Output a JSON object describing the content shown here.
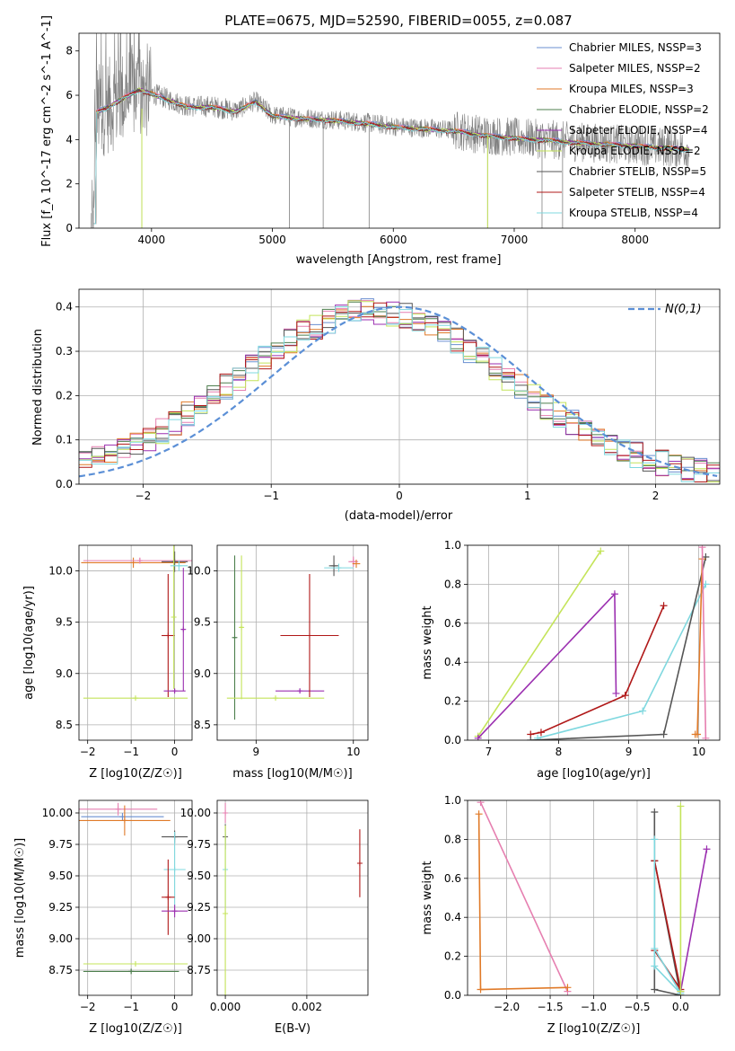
{
  "figure_title": "PLATE=0675, MJD=52590, FIBERID=0055, z=0.087",
  "colors": {
    "Chabrier MILES": "#6a8fd0",
    "Salpeter MILES": "#e67fb0",
    "Kroupa MILES": "#e07a28",
    "Chabrier ELODIE": "#4e7f4e",
    "Salpeter ELODIE": "#9b2fb0",
    "Kroupa ELODIE": "#c4e45a",
    "Chabrier STELIB": "#555555",
    "Salpeter STELIB": "#b01818",
    "Kroupa STELIB": "#7fd8df",
    "data_gray": "#808080",
    "normal_curve": "#5b8fd6"
  },
  "chart_data": [
    {
      "id": "spectrum",
      "type": "line",
      "xlabel": "wavelength [Angstrom, rest frame]",
      "ylabel": "Flux [f_λ 10^-17 erg cm^-2 s^-1 A^-1]",
      "xlim": [
        3400,
        8700
      ],
      "ylim": [
        0,
        8.8
      ],
      "xticks": [
        4000,
        5000,
        6000,
        7000,
        8000
      ],
      "yticks": [
        0,
        2,
        4,
        6,
        8
      ],
      "legend": [
        "Chabrier MILES, NSSP=3",
        "Salpeter MILES, NSSP=2",
        "Kroupa MILES, NSSP=3",
        "Chabrier ELODIE, NSSP=2",
        "Salpeter ELODIE, NSSP=4",
        "Kroupa ELODIE, NSSP=2",
        "Chabrier STELIB, NSSP=5",
        "Salpeter STELIB, NSSP=4",
        "Kroupa STELIB, NSSP=4"
      ],
      "legend_placement": "upper-right",
      "model_curve": {
        "x": [
          3520,
          3600,
          3700,
          3800,
          3900,
          4000,
          4100,
          4300,
          4500,
          4700,
          4860,
          5000,
          5200,
          5500,
          5800,
          6000,
          6300,
          6550,
          6700,
          7000,
          7300,
          7500,
          8000,
          8400
        ],
        "y": [
          5.2,
          5.4,
          5.7,
          6.0,
          6.3,
          6.1,
          5.9,
          5.5,
          5.5,
          5.3,
          5.75,
          5.1,
          5.0,
          4.9,
          4.75,
          4.6,
          4.5,
          4.4,
          4.25,
          4.1,
          4.0,
          3.9,
          3.75,
          3.6
        ]
      },
      "data_spikes": [
        {
          "x": 3920,
          "y": 0
        },
        {
          "x": 5140,
          "y": 0
        },
        {
          "x": 5420,
          "y": 0
        },
        {
          "x": 5800,
          "y": 0
        },
        {
          "x": 6780,
          "y": 0
        },
        {
          "x": 7230,
          "y": 0
        },
        {
          "x": 7400,
          "y": 0
        }
      ]
    },
    {
      "id": "residuals",
      "type": "line",
      "xlabel": "(data-model)/error",
      "ylabel": "Normed distribution",
      "xlim": [
        -2.5,
        2.5
      ],
      "ylim": [
        0,
        0.44
      ],
      "xticks": [
        -2,
        -1,
        0,
        1,
        2
      ],
      "yticks": [
        0.0,
        0.1,
        0.2,
        0.3,
        0.4
      ],
      "grid": true,
      "legend": [
        "N(0,1)"
      ],
      "normal_pdf": {
        "mean": 0,
        "sigma": 1,
        "peak": 0.4
      }
    },
    {
      "id": "age_vs_Z",
      "type": "scatter",
      "xlabel": "Z [log10(Z/Z☉)]",
      "ylabel": "age [log10(age/yr)]",
      "xlim": [
        -2.2,
        0.4
      ],
      "ylim": [
        8.35,
        10.25
      ],
      "xticks": [
        -2,
        -1,
        0
      ],
      "yticks": [
        8.5,
        9.0,
        9.5,
        10.0
      ],
      "grid": true,
      "points": [
        {
          "model": "Kroupa MILES",
          "x": -0.95,
          "y": 10.08,
          "xerr": 1.2,
          "yerr": 0.05
        },
        {
          "model": "Salpeter MILES",
          "x": -0.8,
          "y": 10.1,
          "xerr": 1.3,
          "yerr": 0.03
        },
        {
          "model": "Chabrier STELIB",
          "x": 0.0,
          "y": 10.09,
          "xerr": 0.3,
          "yerr": 0.1
        },
        {
          "model": "Salpeter STELIB",
          "x": -0.15,
          "y": 9.37,
          "xerr": 0.15,
          "yerr": 0.6
        },
        {
          "model": "Salpeter ELODIE",
          "x": 0.2,
          "y": 9.43,
          "xerr": 0.05,
          "yerr": 0.6
        },
        {
          "model": "Salpeter ELODIE",
          "x": 0.0,
          "y": 8.83,
          "xerr": 0.25,
          "yerr": 0.02
        },
        {
          "model": "Kroupa ELODIE",
          "x": -0.9,
          "y": 8.76,
          "xerr": 1.2,
          "yerr": 0.02
        },
        {
          "model": "Kroupa ELODIE",
          "x": -0.02,
          "y": 9.55,
          "xerr": 0.02,
          "yerr": 0.7
        },
        {
          "model": "Kroupa STELIB",
          "x": 0.1,
          "y": 10.05,
          "xerr": 0.2,
          "yerr": 0.05
        }
      ]
    },
    {
      "id": "age_vs_mass",
      "type": "scatter",
      "xlabel": "mass [log10(M/M☉)]",
      "ylabel": "",
      "xlim": [
        8.6,
        10.15
      ],
      "ylim": [
        8.35,
        10.25
      ],
      "xticks": [
        9,
        10
      ],
      "yticks": [
        8.5,
        9.0,
        9.5,
        10.0
      ],
      "grid": true,
      "points": [
        {
          "model": "Chabrier ELODIE",
          "x": 8.78,
          "y": 9.35,
          "xerr": 0.02,
          "yerr": 0.8
        },
        {
          "model": "Kroupa ELODIE",
          "x": 8.85,
          "y": 9.45,
          "xerr": 0.02,
          "yerr": 0.7
        },
        {
          "model": "Kroupa ELODIE",
          "x": 9.2,
          "y": 8.76,
          "xerr": 0.5,
          "yerr": 0.02
        },
        {
          "model": "Salpeter ELODIE",
          "x": 9.45,
          "y": 8.83,
          "xerr": 0.25,
          "yerr": 0.02
        },
        {
          "model": "Salpeter STELIB",
          "x": 9.55,
          "y": 9.37,
          "xerr": 0.3,
          "yerr": 0.6
        },
        {
          "model": "Chabrier STELIB",
          "x": 9.8,
          "y": 10.05,
          "xerr": 0.05,
          "yerr": 0.1
        },
        {
          "model": "Kroupa STELIB",
          "x": 9.85,
          "y": 10.03,
          "xerr": 0.15,
          "yerr": 0.04
        },
        {
          "model": "Salpeter MILES",
          "x": 10.0,
          "y": 10.09,
          "xerr": 0.05,
          "yerr": 0.05
        },
        {
          "model": "Kroupa MILES",
          "x": 10.03,
          "y": 10.07,
          "xerr": 0.04,
          "yerr": 0.04
        }
      ]
    },
    {
      "id": "massweight_vs_age",
      "type": "line",
      "xlabel": "age [log10(age/yr)]",
      "ylabel": "mass weight",
      "xlim": [
        6.7,
        10.3
      ],
      "ylim": [
        0.0,
        1.0
      ],
      "xticks": [
        7,
        8,
        9,
        10
      ],
      "yticks": [
        0.0,
        0.2,
        0.4,
        0.6,
        0.8,
        1.0
      ],
      "grid": true,
      "series": [
        {
          "model": "Kroupa ELODIE",
          "x": [
            6.85,
            8.6
          ],
          "y": [
            0.02,
            0.97
          ]
        },
        {
          "model": "Salpeter ELODIE",
          "x": [
            6.85,
            8.8,
            8.82
          ],
          "y": [
            0.01,
            0.75,
            0.24
          ]
        },
        {
          "model": "Salpeter STELIB",
          "x": [
            7.6,
            7.75,
            8.95,
            9.5
          ],
          "y": [
            0.03,
            0.04,
            0.23,
            0.69
          ]
        },
        {
          "model": "Kroupa STELIB",
          "x": [
            7.7,
            9.2,
            10.1
          ],
          "y": [
            0.01,
            0.15,
            0.8
          ]
        },
        {
          "model": "Chabrier STELIB",
          "x": [
            7.6,
            9.5,
            10.1
          ],
          "y": [
            0.0,
            0.03,
            0.94
          ]
        },
        {
          "model": "Kroupa MILES",
          "x": [
            9.95,
            9.98,
            10.05
          ],
          "y": [
            0.03,
            0.03,
            0.93
          ]
        },
        {
          "model": "Salpeter MILES",
          "x": [
            10.05,
            10.1
          ],
          "y": [
            0.99,
            0.01
          ]
        }
      ]
    },
    {
      "id": "mass_vs_Z",
      "type": "scatter",
      "xlabel": "Z [log10(Z/Z☉)]",
      "ylabel": "mass [log10(M/M☉)]",
      "xlim": [
        -2.2,
        0.4
      ],
      "ylim": [
        8.55,
        10.1
      ],
      "xticks": [
        -2,
        -1,
        0
      ],
      "yticks": [
        8.75,
        9.0,
        9.25,
        9.5,
        9.75,
        10.0
      ],
      "grid": true,
      "points": [
        {
          "model": "Salpeter MILES",
          "x": -1.3,
          "y": 10.03,
          "xerr": 0.9,
          "yerr": 0.05
        },
        {
          "model": "Chabrier MILES",
          "x": -1.2,
          "y": 9.97,
          "xerr": 0.95,
          "yerr": 0.03
        },
        {
          "model": "Kroupa MILES",
          "x": -1.15,
          "y": 9.94,
          "xerr": 1.05,
          "yerr": 0.12
        },
        {
          "model": "Chabrier STELIB",
          "x": 0.0,
          "y": 9.81,
          "xerr": 0.3,
          "yerr": 0.05
        },
        {
          "model": "Kroupa STELIB",
          "x": 0.0,
          "y": 9.55,
          "xerr": 0.25,
          "yerr": 0.3
        },
        {
          "model": "Salpeter STELIB",
          "x": -0.15,
          "y": 9.33,
          "xerr": 0.15,
          "yerr": 0.3
        },
        {
          "model": "Salpeter ELODIE",
          "x": 0.0,
          "y": 9.22,
          "xerr": 0.3,
          "yerr": 0.05
        },
        {
          "model": "Kroupa ELODIE",
          "x": -0.9,
          "y": 8.8,
          "xerr": 1.2,
          "yerr": 0.02
        },
        {
          "model": "Chabrier ELODIE",
          "x": -1.0,
          "y": 8.74,
          "xerr": 1.1,
          "yerr": 0.02
        }
      ]
    },
    {
      "id": "mass_vs_ebv",
      "type": "scatter",
      "xlabel": "E(B-V)",
      "ylabel": "",
      "xlim": [
        -0.0002,
        0.0035
      ],
      "ylim": [
        8.55,
        10.1
      ],
      "xticks": [
        0.0,
        0.002
      ],
      "yticks": [
        8.75,
        9.0,
        9.25,
        9.5,
        9.75,
        10.0
      ],
      "grid": true,
      "points": [
        {
          "model": "Salpeter MILES",
          "x": 0.0,
          "y": 10.0,
          "xerr": 0.0,
          "yerr": 0.08
        },
        {
          "model": "Chabrier STELIB",
          "x": 0.0,
          "y": 9.81,
          "xerr": 0.0,
          "yerr": 0.1
        },
        {
          "model": "Kroupa STELIB",
          "x": 0.0,
          "y": 9.55,
          "xerr": 0.0,
          "yerr": 0.3
        },
        {
          "model": "Kroupa ELODIE",
          "x": 0.0,
          "y": 9.2,
          "xerr": 0.0,
          "yerr": 0.7
        },
        {
          "model": "Salpeter STELIB",
          "x": 0.0033,
          "y": 9.6,
          "xerr": 0.0,
          "yerr": 0.27
        }
      ]
    },
    {
      "id": "massweight_vs_Z",
      "type": "line",
      "xlabel": "Z [log10(Z/Z☉)]",
      "ylabel": "mass weight",
      "xlim": [
        -2.45,
        0.45
      ],
      "ylim": [
        0.0,
        1.0
      ],
      "xticks": [
        -2.0,
        -1.5,
        -1.0,
        -0.5,
        0.0
      ],
      "yticks": [
        0.0,
        0.2,
        0.4,
        0.6,
        0.8,
        1.0
      ],
      "grid": true,
      "series": [
        {
          "model": "Salpeter MILES",
          "x": [
            -2.3,
            -1.3
          ],
          "y": [
            0.99,
            0.02
          ]
        },
        {
          "model": "Kroupa MILES",
          "x": [
            -2.32,
            -2.3,
            -1.3
          ],
          "y": [
            0.93,
            0.03,
            0.04
          ]
        },
        {
          "model": "Chabrier STELIB",
          "x": [
            -0.3,
            -0.3,
            0.0,
            -0.3
          ],
          "y": [
            0.94,
            0.03,
            0.0,
            0.69
          ]
        },
        {
          "model": "Salpeter STELIB",
          "x": [
            -0.3,
            0.0,
            -0.3
          ],
          "y": [
            0.69,
            0.03,
            0.23
          ]
        },
        {
          "model": "Kroupa STELIB",
          "x": [
            -0.3,
            -0.3,
            0.0,
            -0.3
          ],
          "y": [
            0.8,
            0.15,
            0.01,
            0.24
          ]
        },
        {
          "model": "Salpeter ELODIE",
          "x": [
            0.0,
            0.3
          ],
          "y": [
            0.02,
            0.75
          ]
        },
        {
          "model": "Kroupa ELODIE",
          "x": [
            0.0,
            0.0
          ],
          "y": [
            0.97,
            0.02
          ]
        }
      ]
    }
  ]
}
